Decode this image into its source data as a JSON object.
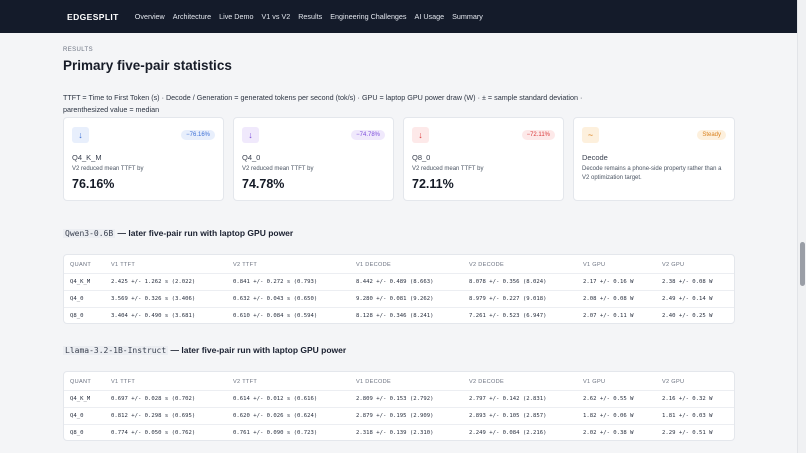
{
  "nav": {
    "brand": "EDGESPLIT",
    "links": [
      "Overview",
      "Architecture",
      "Live Demo",
      "V1 vs V2",
      "Results",
      "Engineering Challenges",
      "AI Usage",
      "Summary"
    ]
  },
  "section": {
    "eyebrow": "RESULTS",
    "title": "Primary five-pair statistics",
    "description": "TTFT = Time to First Token (s) · Decode / Generation = generated tokens per second (tok/s) · GPU = laptop GPU power draw (W) · ± = sample standard deviation · parenthesized value = median"
  },
  "cards": [
    {
      "icon": "arrow-down-icon",
      "badge": "−76.16%",
      "name": "Q4_K_M",
      "label": "V2 reduced mean TTFT by",
      "value": "76.16%",
      "accent": "#3b6fd6"
    },
    {
      "icon": "arrow-down-icon",
      "badge": "−74.78%",
      "name": "Q4_0",
      "label": "V2 reduced mean TTFT by",
      "value": "74.78%",
      "accent": "#7c4ddb"
    },
    {
      "icon": "arrow-down-icon",
      "badge": "−72.11%",
      "name": "Q8_0",
      "label": "V2 reduced mean TTFT by",
      "value": "72.11%",
      "accent": "#d9393b"
    },
    {
      "icon": "tilde-icon",
      "badge": "Steady",
      "name": "Decode",
      "note": "Decode remains a phone-side property rather than a V2 optimization target.",
      "accent": "#d9821f"
    }
  ],
  "tables": [
    {
      "model": "Qwen3-0.6B",
      "suffix": " — later five-pair run with laptop GPU power",
      "headers": [
        "QUANT",
        "V1 TTFT",
        "V2 TTFT",
        "V1 DECODE",
        "V2 DECODE",
        "V1 GPU",
        "V2 GPU"
      ],
      "rows": [
        [
          "Q4_K_M",
          "2.425 +/- 1.262 s (2.022)",
          "0.841 +/- 0.272 s (0.793)",
          "8.442 +/- 0.489 (8.663)",
          "8.078 +/- 0.356 (8.024)",
          "2.17 +/- 0.16 W",
          "2.38 +/- 0.08 W"
        ],
        [
          "Q4_0",
          "3.569 +/- 0.326 s (3.406)",
          "0.632 +/- 0.043 s (0.650)",
          "9.280 +/- 0.081 (9.262)",
          "8.979 +/- 0.227 (9.018)",
          "2.08 +/- 0.08 W",
          "2.49 +/- 0.14 W"
        ],
        [
          "Q8_0",
          "3.404 +/- 0.490 s (3.681)",
          "0.610 +/- 0.084 s (0.594)",
          "8.128 +/- 0.346 (8.241)",
          "7.261 +/- 0.523 (6.947)",
          "2.07 +/- 0.11 W",
          "2.40 +/- 0.25 W"
        ]
      ]
    },
    {
      "model": "Llama-3.2-1B-Instruct",
      "suffix": " — later five-pair run with laptop GPU power",
      "headers": [
        "QUANT",
        "V1 TTFT",
        "V2 TTFT",
        "V1 DECODE",
        "V2 DECODE",
        "V1 GPU",
        "V2 GPU"
      ],
      "rows": [
        [
          "Q4_K_M",
          "0.697 +/- 0.028 s (0.702)",
          "0.614 +/- 0.012 s (0.616)",
          "2.809 +/- 0.153 (2.792)",
          "2.797 +/- 0.142 (2.831)",
          "2.62 +/- 0.55 W",
          "2.16 +/- 0.32 W"
        ],
        [
          "Q4_0",
          "0.812 +/- 0.298 s (0.695)",
          "0.620 +/- 0.026 s (0.624)",
          "2.879 +/- 0.195 (2.909)",
          "2.893 +/- 0.105 (2.857)",
          "1.82 +/- 0.06 W",
          "1.81 +/- 0.03 W"
        ],
        [
          "Q8_0",
          "0.774 +/- 0.050 s (0.762)",
          "0.761 +/- 0.090 s (0.723)",
          "2.318 +/- 0.139 (2.310)",
          "2.249 +/- 0.084 (2.216)",
          "2.02 +/- 0.38 W",
          "2.29 +/- 0.51 W"
        ]
      ]
    }
  ]
}
